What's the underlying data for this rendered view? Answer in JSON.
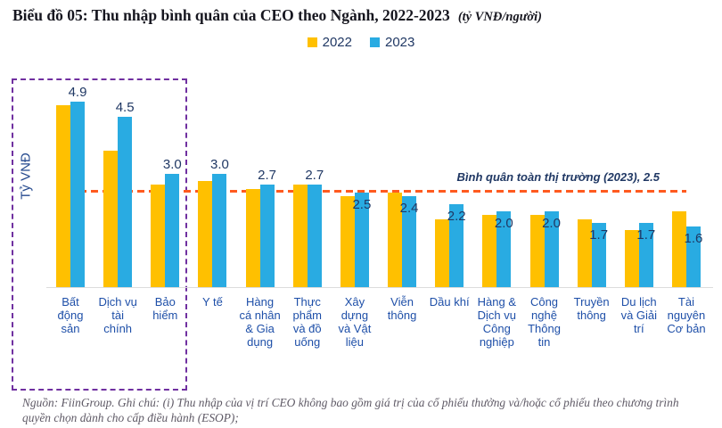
{
  "title": {
    "main": "Biểu đồ 05: Thu nhập bình quân của CEO theo Ngành, 2022-2023",
    "unit": "(tỷ VNĐ/người)"
  },
  "legend": [
    {
      "label": "2022",
      "color": "#FFC000"
    },
    {
      "label": "2023",
      "color": "#29ABE2"
    }
  ],
  "y_axis_label": "Tỷ VNĐ",
  "benchmark": {
    "label": "Bình quân toàn thị trường (2023), 2.5",
    "value": 2.5,
    "line_color": "#FF5A1F"
  },
  "highlight": {
    "box_color": "#7030A0",
    "categories_covered": [
      "Bất động sản",
      "Dịch vụ tài chính",
      "Bảo hiểm"
    ]
  },
  "footnote": "Nguồn: FiinGroup. Ghi chú: (i) Thu nhập của vị trí CEO không bao gồm giá trị của cổ phiếu thưởng và/hoặc cổ phiếu theo chương trình quyền chọn dành cho cấp điều hành (ESOP);",
  "chart_data": {
    "type": "bar",
    "title": "Thu nhập bình quân của CEO theo Ngành, 2022-2023 (tỷ VNĐ/người)",
    "ylabel": "Tỷ VNĐ",
    "ylim": [
      0,
      5.2
    ],
    "grid": false,
    "legend_position": "top-center",
    "benchmark_line": {
      "value": 2.5,
      "label": "Bình quân toàn thị trường (2023), 2.5"
    },
    "categories": [
      "Bất động sản",
      "Dịch vụ tài chính",
      "Bảo hiểm",
      "Y tế",
      "Hàng cá nhân & Gia dụng",
      "Thực phẩm và đồ uống",
      "Xây dựng và Vật liệu",
      "Viễn thông",
      "Dầu khí",
      "Hàng & Dịch vụ Công nghiệp",
      "Công nghệ Thông tin",
      "Truyền thông",
      "Du lịch và Giải trí",
      "Tài nguyên Cơ bản"
    ],
    "tick_label_lines": [
      [
        "Bất",
        "động",
        "sản"
      ],
      [
        "Dịch vụ",
        "tài",
        "chính"
      ],
      [
        "Bảo",
        "hiểm"
      ],
      [
        "Y tế"
      ],
      [
        "Hàng",
        "cá nhân",
        "& Gia",
        "dụng"
      ],
      [
        "Thực",
        "phẩm",
        "và đồ",
        "uống"
      ],
      [
        "Xây",
        "dựng",
        "và Vật",
        "liệu"
      ],
      [
        "Viễn",
        "thông"
      ],
      [
        "Dầu khí"
      ],
      [
        "Hàng &",
        "Dịch vụ",
        "Công",
        "nghiệp"
      ],
      [
        "Công",
        "nghệ",
        "Thông",
        "tin"
      ],
      [
        "Truyền",
        "thông"
      ],
      [
        "Du lịch",
        "và Giải",
        "trí"
      ],
      [
        "Tài",
        "nguyên",
        "Cơ bản"
      ]
    ],
    "series": [
      {
        "name": "2022",
        "color": "#FFC000",
        "values": [
          4.8,
          3.6,
          2.7,
          2.8,
          2.6,
          2.7,
          2.4,
          2.5,
          1.8,
          1.9,
          1.9,
          1.8,
          1.5,
          2.0
        ]
      },
      {
        "name": "2023",
        "color": "#29ABE2",
        "values": [
          4.9,
          4.5,
          3.0,
          3.0,
          2.7,
          2.7,
          2.5,
          2.4,
          2.2,
          2.0,
          2.0,
          1.7,
          1.7,
          1.6
        ]
      }
    ],
    "data_labels": [
      "4.9",
      "4.5",
      "3.0",
      "3.0",
      "2.7",
      "2.7",
      "2.5",
      "2.4",
      "2.2",
      "2.0",
      "2.0",
      "1.7",
      "1.7",
      "1.6"
    ],
    "data_labels_series": "2023"
  }
}
